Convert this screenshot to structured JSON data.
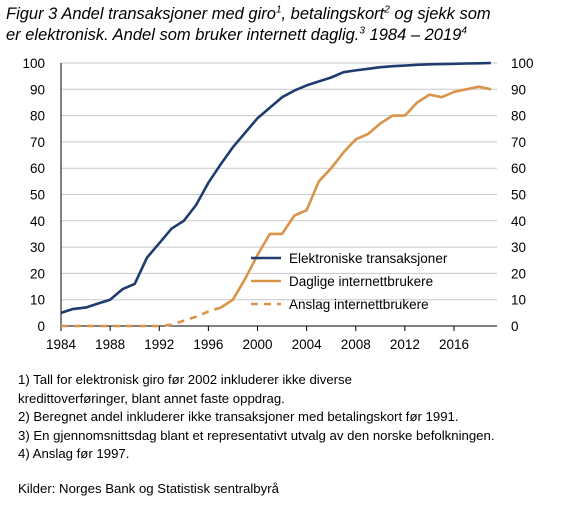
{
  "title": {
    "line1_a": "Figur 3 Andel transaksjoner med giro",
    "sup1": "1",
    "line1_b": ", betalingskort",
    "sup2": "2",
    "line1_c": " og sjekk som",
    "line2_a": "er elektronisk. Andel som bruker internett daglig.",
    "sup3": "3",
    "line2_b": " 1984 – 2019",
    "sup4": "4"
  },
  "chart_data": {
    "type": "line",
    "xlim": [
      1984,
      2019.5
    ],
    "ylim": [
      0,
      100
    ],
    "x_ticks": [
      "1984",
      "1988",
      "1992",
      "1996",
      "2000",
      "2004",
      "2008",
      "2012",
      "2016"
    ],
    "y_ticks": [
      "0",
      "10",
      "20",
      "30",
      "40",
      "50",
      "60",
      "70",
      "80",
      "90",
      "100"
    ],
    "grid": true,
    "legend_position": "bottom-right",
    "series": [
      {
        "name": "Elektroniske transaksjoner",
        "color": "#1f3c6e",
        "style": "solid",
        "x": [
          1984,
          1985,
          1986,
          1987,
          1988,
          1989,
          1990,
          1991,
          1992,
          1993,
          1994,
          1995,
          1996,
          1997,
          1998,
          1999,
          2000,
          2001,
          2002,
          2003,
          2004,
          2005,
          2006,
          2007,
          2008,
          2009,
          2010,
          2011,
          2012,
          2013,
          2014,
          2015,
          2016,
          2017,
          2018,
          2019
        ],
        "y": [
          5,
          6.5,
          7,
          8.5,
          10,
          14,
          16,
          26,
          31.5,
          37,
          40,
          46,
          54.5,
          61.5,
          68,
          73.5,
          79,
          83,
          87,
          89.5,
          91.5,
          93,
          94.5,
          96.5,
          97.2,
          97.8,
          98.4,
          98.8,
          99,
          99.3,
          99.5,
          99.6,
          99.7,
          99.8,
          99.9,
          100
        ]
      },
      {
        "name": "Daglige internettbrukere",
        "color": "#d9944a",
        "style": "solid",
        "x": [
          1997,
          1998,
          1999,
          2000,
          2001,
          2002,
          2003,
          2004,
          2005,
          2006,
          2007,
          2008,
          2009,
          2010,
          2011,
          2012,
          2013,
          2014,
          2015,
          2016,
          2017,
          2018,
          2019
        ],
        "y": [
          7,
          10,
          18,
          27,
          35,
          35,
          42,
          44,
          55,
          60,
          66,
          71,
          73,
          77,
          80,
          80,
          85,
          88,
          87,
          89,
          90,
          91,
          90
        ]
      },
      {
        "name": "Anslag internettbrukere",
        "color": "#d9944a",
        "style": "dashed",
        "x": [
          1984,
          1985,
          1986,
          1987,
          1988,
          1989,
          1990,
          1991,
          1992,
          1993,
          1994,
          1995,
          1996,
          1997
        ],
        "y": [
          0,
          0,
          0,
          0,
          0,
          0,
          0,
          0,
          0,
          0.5,
          2,
          3.5,
          5.5,
          7
        ]
      }
    ]
  },
  "notes": [
    "1) Tall for elektronisk giro før 2002 inkluderer ikke diverse",
    "kredittoverføringer, blant annet faste oppdrag.",
    "2) Beregnet andel inkluderer ikke transaksjoner med betalingskort før 1991.",
    "3) En gjennomsnittsdag blant et representativt utvalg av den norske befolkningen.",
    "4) Anslag før 1997."
  ],
  "source": "Kilder: Norges Bank og Statistisk sentralbyrå"
}
